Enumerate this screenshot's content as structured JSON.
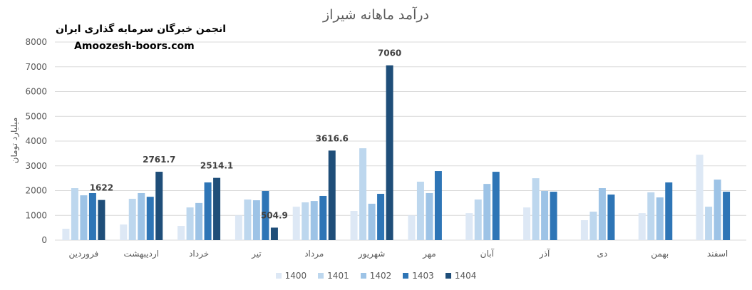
{
  "chart_data": {
    "type": "bar",
    "title": "درآمد ماهانه شیراز",
    "ylabel": "میلیارد تومان",
    "xlabel": "",
    "ylim": [
      0,
      8000
    ],
    "yticks": [
      "0",
      "1000",
      "2000",
      "3000",
      "4000",
      "5000",
      "6000",
      "7000",
      "8000"
    ],
    "grid": true,
    "legend_position": "bottom",
    "categories": [
      "فروردین",
      "اردیبهشت",
      "خرداد",
      "تیر",
      "مرداد",
      "شهریور",
      "مهر",
      "آبان",
      "آذر",
      "دی",
      "بهمن",
      "اسفند"
    ],
    "series": [
      {
        "name": "1400",
        "color": "#dde8f5",
        "values": [
          460,
          630,
          575,
          1000,
          1350,
          1180,
          1000,
          1090,
          1320,
          805,
          1090,
          3450
        ]
      },
      {
        "name": "1401",
        "color": "#bdd7ee",
        "values": [
          2100,
          1670,
          1320,
          1640,
          1525,
          3710,
          2360,
          1640,
          2500,
          1150,
          1930,
          1350
        ]
      },
      {
        "name": "1402",
        "color": "#9dc3e6",
        "values": [
          1810,
          1900,
          1500,
          1610,
          1580,
          1470,
          1900,
          2270,
          1985,
          2100,
          1725,
          2445
        ]
      },
      {
        "name": "1403",
        "color": "#2e75b6",
        "values": [
          1900,
          1750,
          2330,
          1985,
          1785,
          1870,
          2790,
          2760,
          1955,
          1840,
          2330,
          1955
        ]
      },
      {
        "name": "1404",
        "color": "#1f4e79",
        "values": [
          1622,
          2761.7,
          2514.1,
          504.9,
          3616.6,
          7060,
          null,
          null,
          null,
          null,
          null,
          null
        ]
      }
    ],
    "data_labels": {
      "series": "1404",
      "labels": [
        "1622",
        "2761.7",
        "2514.1",
        "504.9",
        "3616.6",
        "7060"
      ]
    }
  },
  "watermark": {
    "line1": "انجمن خبرگان سرمایه گذاری ایران",
    "line2": "Amoozesh-boors.com"
  }
}
